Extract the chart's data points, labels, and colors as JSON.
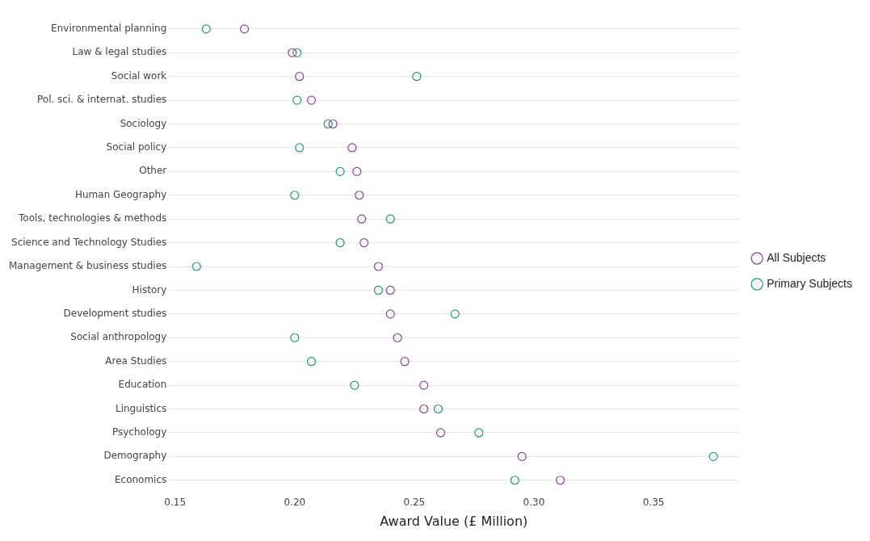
{
  "chart_data": {
    "type": "scatter",
    "xlabel": "Award Value (£ Million)",
    "categories": [
      "Environmental planning",
      "Law & legal studies",
      "Social work",
      "Pol. sci. & internat. studies",
      "Sociology",
      "Social policy",
      "Other",
      "Human Geography",
      "Tools, technologies & methods",
      "Science and Technology Studies",
      "Management & business studies",
      "History",
      "Development studies",
      "Social anthropology",
      "Area Studies",
      "Education",
      "Linguistics",
      "Psychology",
      "Demography",
      "Economics"
    ],
    "series": [
      {
        "name": "All Subjects",
        "color": "#8e3f9e",
        "values": [
          0.179,
          0.199,
          0.202,
          0.207,
          0.216,
          0.224,
          0.226,
          0.227,
          0.228,
          0.229,
          0.235,
          0.24,
          0.24,
          0.243,
          0.246,
          0.254,
          0.254,
          0.261,
          0.295,
          0.311
        ]
      },
      {
        "name": "Primary Subjects",
        "color": "#1b9e77",
        "values": [
          0.163,
          0.201,
          0.251,
          0.201,
          0.214,
          0.202,
          0.219,
          0.2,
          0.24,
          0.219,
          0.159,
          0.235,
          0.267,
          0.2,
          0.207,
          0.225,
          0.26,
          0.277,
          0.375,
          0.292
        ]
      }
    ],
    "xlim": [
      0.1475,
      0.3855
    ],
    "xticks": [
      0.15,
      {
        "value": 0.2,
        "label": "0.20"
      },
      0.25,
      {
        "value": 0.3,
        "label": "0.30"
      },
      0.35
    ],
    "orientation": "horizontal",
    "grid": "y",
    "legend": "right",
    "marker": "circle"
  }
}
